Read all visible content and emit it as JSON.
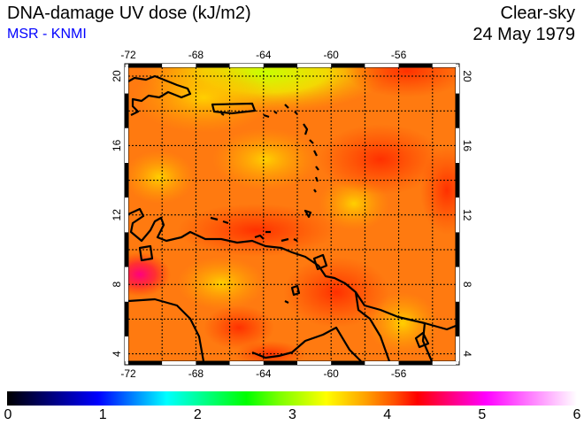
{
  "header": {
    "title": "DNA-damage UV dose (kJ/m2)",
    "source": "MSR - KNMI",
    "condition": "Clear-sky",
    "date": "24 May 1979"
  },
  "map": {
    "lon_ticks": [
      "-72",
      "-68",
      "-64",
      "-60",
      "-56"
    ],
    "lat_ticks": [
      "20",
      "16",
      "12",
      "8",
      "4"
    ],
    "lon_values": [
      -72,
      -68,
      -64,
      -60,
      -56
    ],
    "lat_values": [
      20,
      16,
      12,
      8,
      4
    ],
    "lon_range": [
      -72,
      -52.5
    ],
    "lat_range": [
      3.5,
      20.7
    ]
  },
  "colorbar": {
    "labels": [
      "0",
      "1",
      "2",
      "3",
      "4",
      "5",
      "6"
    ],
    "range": [
      0,
      6
    ]
  },
  "colors": {
    "source_text": "#0000ff",
    "field_base": "#ff7a10"
  }
}
